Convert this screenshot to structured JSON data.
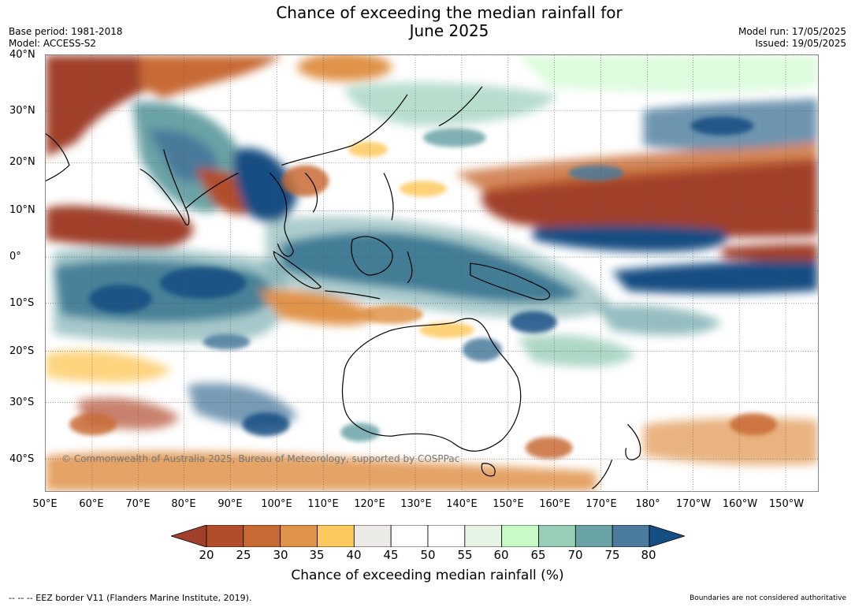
{
  "title": {
    "line1": "Chance of exceeding the median rainfall for",
    "line2": "June 2025"
  },
  "meta_left": {
    "base_period": "Base period: 1981-2018",
    "model": "Model: ACCESS-S2"
  },
  "meta_right": {
    "model_run": "Model run: 17/05/2025",
    "issued": "Issued: 19/05/2025"
  },
  "lat_labels": [
    "40°N",
    "30°N",
    "20°N",
    "10°N",
    "0°",
    "10°S",
    "20°S",
    "30°S",
    "40°S"
  ],
  "lon_labels": [
    "50°E",
    "60°E",
    "70°E",
    "80°E",
    "90°E",
    "100°E",
    "110°E",
    "120°E",
    "130°E",
    "140°E",
    "150°E",
    "160°E",
    "170°E",
    "180°",
    "170°W",
    "160°W",
    "150°W"
  ],
  "watermark": "© Commonwealth of Australia 2025, Bureau of Meteorology, supported by COSPPac",
  "colorbar": {
    "ticks": [
      "20",
      "25",
      "30",
      "35",
      "40",
      "45",
      "50",
      "55",
      "60",
      "65",
      "70",
      "75",
      "80"
    ],
    "colors": [
      "#a0402a",
      "#b24d2c",
      "#c86a34",
      "#e0934a",
      "#fdc95f",
      "#eceae6",
      "#ffffff",
      "#ffffff",
      "#e6f4e6",
      "#c8fac8",
      "#98ceb8",
      "#6aa3a6",
      "#4a7a9c",
      "#144e82"
    ],
    "label": "Chance of exceeding median rainfall (%)"
  },
  "footer_left": "--  --  -- EEZ border V11 (Flanders Marine Institute, 2019).",
  "footer_right": "Boundaries are not considered authoritative"
}
